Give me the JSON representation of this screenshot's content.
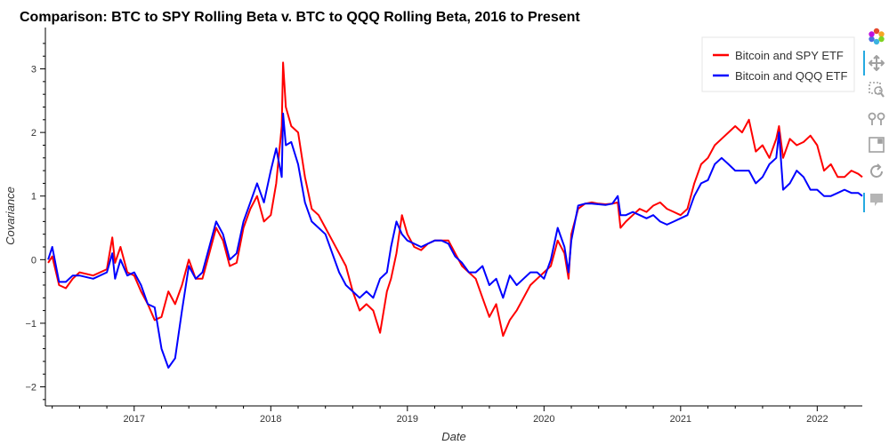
{
  "chart_data": {
    "type": "line",
    "title": "Comparison: BTC to SPY Rolling Beta v. BTC to QQQ Rolling Beta, 2016 to Present",
    "xlabel": "Date",
    "ylabel": "Covariance",
    "xlim": [
      2016.35,
      2022.33
    ],
    "ylim": [
      -2.3,
      3.65
    ],
    "x_ticks": [
      2017,
      2018,
      2019,
      2020,
      2021,
      2022
    ],
    "x_tick_labels": [
      "2017",
      "2018",
      "2019",
      "2020",
      "2021",
      "2022"
    ],
    "y_ticks": [
      -2,
      -1,
      0,
      1,
      2,
      3
    ],
    "y_tick_labels": [
      "−2",
      "−1",
      "0",
      "1",
      "2",
      "3"
    ],
    "grid": false,
    "legend_position": "top-right",
    "series": [
      {
        "name": "Bitcoin and SPY ETF",
        "color": "#ff0000",
        "x": [
          2016.37,
          2016.4,
          2016.45,
          2016.5,
          2016.55,
          2016.6,
          2016.7,
          2016.8,
          2016.84,
          2016.86,
          2016.9,
          2016.95,
          2017.0,
          2017.05,
          2017.1,
          2017.15,
          2017.2,
          2017.25,
          2017.3,
          2017.35,
          2017.4,
          2017.45,
          2017.5,
          2017.55,
          2017.6,
          2017.65,
          2017.7,
          2017.75,
          2017.8,
          2017.85,
          2017.9,
          2017.95,
          2018.0,
          2018.04,
          2018.08,
          2018.09,
          2018.11,
          2018.15,
          2018.2,
          2018.25,
          2018.3,
          2018.35,
          2018.4,
          2018.45,
          2018.5,
          2018.55,
          2018.6,
          2018.65,
          2018.7,
          2018.75,
          2018.8,
          2018.85,
          2018.88,
          2018.92,
          2018.96,
          2019.0,
          2019.05,
          2019.1,
          2019.15,
          2019.2,
          2019.25,
          2019.3,
          2019.35,
          2019.4,
          2019.45,
          2019.5,
          2019.55,
          2019.6,
          2019.65,
          2019.7,
          2019.75,
          2019.8,
          2019.85,
          2019.9,
          2019.95,
          2020.0,
          2020.05,
          2020.1,
          2020.15,
          2020.18,
          2020.2,
          2020.25,
          2020.3,
          2020.35,
          2020.4,
          2020.45,
          2020.5,
          2020.54,
          2020.56,
          2020.6,
          2020.65,
          2020.7,
          2020.75,
          2020.8,
          2020.85,
          2020.9,
          2020.95,
          2021.0,
          2021.05,
          2021.1,
          2021.15,
          2021.2,
          2021.25,
          2021.3,
          2021.35,
          2021.4,
          2021.45,
          2021.5,
          2021.55,
          2021.6,
          2021.65,
          2021.7,
          2021.72,
          2021.75,
          2021.8,
          2021.85,
          2021.9,
          2021.95,
          2022.0,
          2022.05,
          2022.1,
          2022.15,
          2022.2,
          2022.25,
          2022.3,
          2022.33
        ],
        "y": [
          -0.05,
          0.05,
          -0.4,
          -0.45,
          -0.3,
          -0.2,
          -0.25,
          -0.15,
          0.35,
          -0.05,
          0.2,
          -0.2,
          -0.25,
          -0.5,
          -0.7,
          -0.95,
          -0.9,
          -0.5,
          -0.7,
          -0.4,
          0.0,
          -0.3,
          -0.3,
          0.1,
          0.5,
          0.3,
          -0.1,
          -0.05,
          0.5,
          0.8,
          1.0,
          0.6,
          0.7,
          1.2,
          2.1,
          3.1,
          2.4,
          2.1,
          2.0,
          1.3,
          0.8,
          0.7,
          0.5,
          0.3,
          0.1,
          -0.1,
          -0.5,
          -0.8,
          -0.7,
          -0.8,
          -1.15,
          -0.5,
          -0.3,
          0.1,
          0.7,
          0.4,
          0.2,
          0.15,
          0.25,
          0.3,
          0.3,
          0.3,
          0.1,
          -0.1,
          -0.2,
          -0.3,
          -0.6,
          -0.9,
          -0.7,
          -1.2,
          -0.95,
          -0.8,
          -0.6,
          -0.4,
          -0.3,
          -0.2,
          -0.1,
          0.3,
          0.1,
          -0.3,
          0.4,
          0.8,
          0.88,
          0.9,
          0.88,
          0.87,
          0.88,
          0.9,
          0.5,
          0.6,
          0.7,
          0.8,
          0.75,
          0.85,
          0.9,
          0.8,
          0.75,
          0.7,
          0.8,
          1.2,
          1.5,
          1.6,
          1.8,
          1.9,
          2.0,
          2.1,
          2.0,
          2.2,
          1.7,
          1.8,
          1.6,
          1.9,
          2.1,
          1.6,
          1.9,
          1.8,
          1.85,
          1.95,
          1.8,
          1.4,
          1.5,
          1.3,
          1.3,
          1.4,
          1.35,
          1.3
        ]
      },
      {
        "name": "Bitcoin and QQQ ETF",
        "color": "#0000ff",
        "x": [
          2016.37,
          2016.4,
          2016.45,
          2016.5,
          2016.55,
          2016.6,
          2016.7,
          2016.8,
          2016.84,
          2016.86,
          2016.9,
          2016.95,
          2017.0,
          2017.05,
          2017.1,
          2017.15,
          2017.2,
          2017.25,
          2017.3,
          2017.35,
          2017.4,
          2017.45,
          2017.5,
          2017.55,
          2017.6,
          2017.65,
          2017.7,
          2017.75,
          2017.8,
          2017.85,
          2017.9,
          2017.95,
          2018.0,
          2018.04,
          2018.08,
          2018.09,
          2018.11,
          2018.15,
          2018.2,
          2018.25,
          2018.3,
          2018.35,
          2018.4,
          2018.45,
          2018.5,
          2018.55,
          2018.6,
          2018.65,
          2018.7,
          2018.75,
          2018.8,
          2018.85,
          2018.88,
          2018.92,
          2018.96,
          2019.0,
          2019.05,
          2019.1,
          2019.15,
          2019.2,
          2019.25,
          2019.3,
          2019.35,
          2019.4,
          2019.45,
          2019.5,
          2019.55,
          2019.6,
          2019.65,
          2019.7,
          2019.75,
          2019.8,
          2019.85,
          2019.9,
          2019.95,
          2020.0,
          2020.05,
          2020.1,
          2020.15,
          2020.18,
          2020.2,
          2020.25,
          2020.3,
          2020.35,
          2020.4,
          2020.45,
          2020.5,
          2020.54,
          2020.56,
          2020.6,
          2020.65,
          2020.7,
          2020.75,
          2020.8,
          2020.85,
          2020.9,
          2020.95,
          2021.0,
          2021.05,
          2021.1,
          2021.15,
          2021.2,
          2021.25,
          2021.3,
          2021.35,
          2021.4,
          2021.45,
          2021.5,
          2021.55,
          2021.6,
          2021.65,
          2021.7,
          2021.72,
          2021.75,
          2021.8,
          2021.85,
          2021.9,
          2021.95,
          2022.0,
          2022.05,
          2022.1,
          2022.15,
          2022.2,
          2022.25,
          2022.3,
          2022.33
        ],
        "y": [
          0.0,
          0.2,
          -0.35,
          -0.35,
          -0.25,
          -0.25,
          -0.3,
          -0.2,
          0.1,
          -0.3,
          0.0,
          -0.25,
          -0.2,
          -0.4,
          -0.7,
          -0.75,
          -1.4,
          -1.7,
          -1.55,
          -0.8,
          -0.1,
          -0.3,
          -0.2,
          0.2,
          0.6,
          0.4,
          0.0,
          0.1,
          0.6,
          0.9,
          1.2,
          0.9,
          1.4,
          1.75,
          1.3,
          2.3,
          1.8,
          1.85,
          1.5,
          0.9,
          0.6,
          0.5,
          0.4,
          0.1,
          -0.2,
          -0.4,
          -0.5,
          -0.6,
          -0.5,
          -0.6,
          -0.3,
          -0.2,
          0.2,
          0.6,
          0.4,
          0.3,
          0.25,
          0.2,
          0.25,
          0.3,
          0.3,
          0.25,
          0.05,
          -0.05,
          -0.2,
          -0.2,
          -0.1,
          -0.4,
          -0.3,
          -0.6,
          -0.25,
          -0.4,
          -0.3,
          -0.2,
          -0.2,
          -0.3,
          0.0,
          0.5,
          0.2,
          -0.2,
          0.3,
          0.85,
          0.88,
          0.88,
          0.87,
          0.86,
          0.88,
          1.0,
          0.7,
          0.7,
          0.75,
          0.7,
          0.65,
          0.7,
          0.6,
          0.55,
          0.6,
          0.65,
          0.7,
          1.0,
          1.2,
          1.25,
          1.5,
          1.6,
          1.5,
          1.4,
          1.4,
          1.4,
          1.2,
          1.3,
          1.5,
          1.6,
          2.0,
          1.1,
          1.2,
          1.4,
          1.3,
          1.1,
          1.1,
          1.0,
          1.0,
          1.05,
          1.1,
          1.05,
          1.05,
          1.0
        ]
      }
    ]
  },
  "toolbar": {
    "tools": [
      "bokeh-logo-icon",
      "pan-icon",
      "box-zoom-icon",
      "wheel-zoom-icon",
      "save-icon",
      "reset-icon",
      "hover-icon"
    ]
  }
}
